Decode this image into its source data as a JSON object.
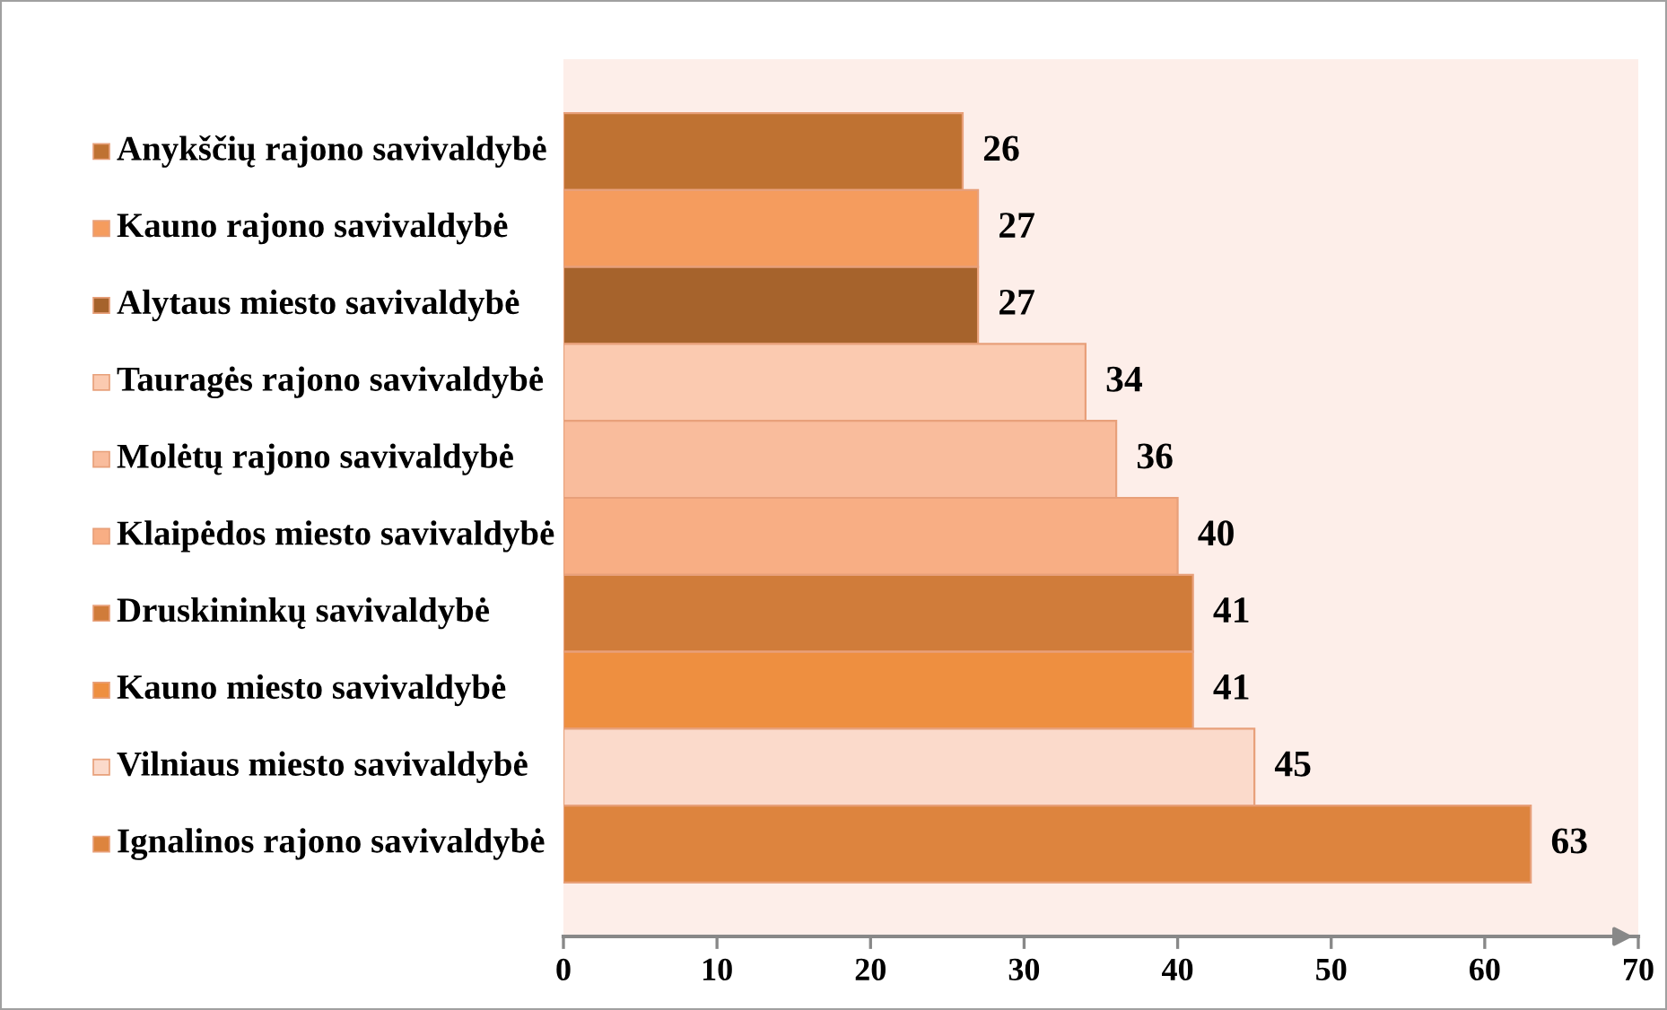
{
  "chart_data": {
    "type": "bar",
    "orientation": "horizontal",
    "categories": [
      "Anykščių rajono savivaldybė",
      "Kauno rajono savivaldybė",
      "Alytaus miesto savivaldybė",
      "Tauragės rajono savivaldybė",
      "Molėtų rajono savivaldybė",
      "Klaipėdos miesto savivaldybė",
      "Druskininkų savivaldybė",
      "Kauno miesto savivaldybė",
      "Vilniaus miesto savivaldybė",
      "Ignalinos rajono savivaldybė"
    ],
    "values": [
      26,
      27,
      27,
      34,
      36,
      40,
      41,
      41,
      45,
      63
    ],
    "colors": [
      "#bf7232",
      "#f59c5e",
      "#a6632c",
      "#fbcab0",
      "#f9bc9c",
      "#f8ae84",
      "#d07c3a",
      "#ee8f40",
      "#fbdacb",
      "#dd843e"
    ],
    "xlim": [
      0,
      70
    ],
    "xticks": [
      0,
      10,
      20,
      30,
      40,
      50,
      60,
      70
    ],
    "data_labels": true,
    "grid": false
  }
}
